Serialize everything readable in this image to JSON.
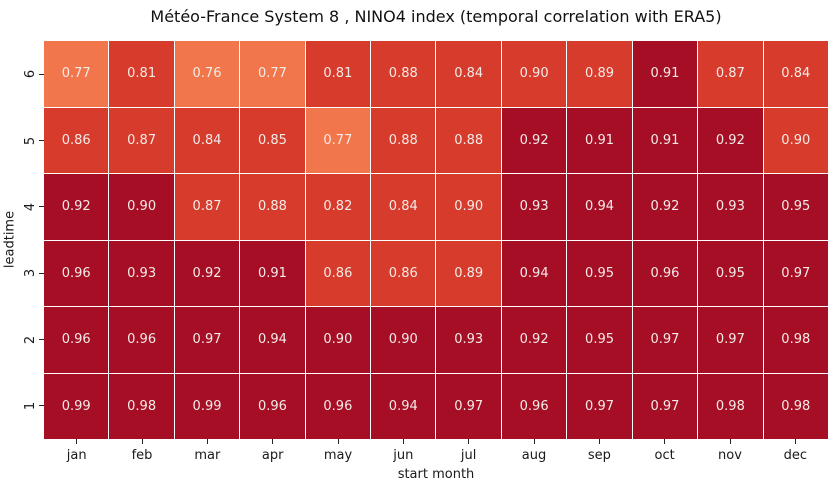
{
  "chart_data": {
    "type": "heatmap",
    "title": "Météo-France System 8 , NINO4 index (temporal correlation with ERA5)",
    "xlabel": "start month",
    "ylabel": "leadtime",
    "x_categories": [
      "jan",
      "feb",
      "mar",
      "apr",
      "may",
      "jun",
      "jul",
      "aug",
      "sep",
      "oct",
      "nov",
      "dec"
    ],
    "y_categories": [
      "6",
      "5",
      "4",
      "3",
      "2",
      "1"
    ],
    "values": [
      [
        0.77,
        0.81,
        0.76,
        0.77,
        0.81,
        0.88,
        0.84,
        0.9,
        0.89,
        0.91,
        0.87,
        0.84
      ],
      [
        0.86,
        0.87,
        0.84,
        0.85,
        0.77,
        0.88,
        0.88,
        0.92,
        0.91,
        0.91,
        0.92,
        0.9
      ],
      [
        0.92,
        0.9,
        0.87,
        0.88,
        0.82,
        0.84,
        0.9,
        0.93,
        0.94,
        0.92,
        0.93,
        0.95
      ],
      [
        0.96,
        0.93,
        0.92,
        0.91,
        0.86,
        0.86,
        0.89,
        0.94,
        0.95,
        0.96,
        0.95,
        0.97
      ],
      [
        0.96,
        0.96,
        0.97,
        0.94,
        0.9,
        0.9,
        0.93,
        0.92,
        0.95,
        0.97,
        0.97,
        0.98
      ],
      [
        0.99,
        0.98,
        0.99,
        0.96,
        0.96,
        0.94,
        0.97,
        0.96,
        0.97,
        0.97,
        0.98,
        0.98
      ]
    ],
    "cell_bands": [
      [
        "O",
        "R",
        "O",
        "O",
        "R",
        "R",
        "R",
        "R",
        "R",
        "D",
        "R",
        "R"
      ],
      [
        "R",
        "R",
        "R",
        "R",
        "O",
        "R",
        "R",
        "D",
        "D",
        "D",
        "D",
        "R"
      ],
      [
        "D",
        "D",
        "R",
        "R",
        "R",
        "R",
        "R",
        "D",
        "D",
        "D",
        "D",
        "D"
      ],
      [
        "D",
        "D",
        "D",
        "D",
        "R",
        "R",
        "R",
        "D",
        "D",
        "D",
        "D",
        "D"
      ],
      [
        "D",
        "D",
        "D",
        "D",
        "D",
        "D",
        "D",
        "D",
        "D",
        "D",
        "D",
        "D"
      ],
      [
        "D",
        "D",
        "D",
        "D",
        "D",
        "D",
        "D",
        "D",
        "D",
        "D",
        "D",
        "D"
      ]
    ],
    "palette": {
      "O": "#f1764b",
      "R": "#d73b2c",
      "D": "#a50e25"
    },
    "annotation_text_color": "#f3ebe7",
    "grid_line_color": "#ffffff",
    "value_format_decimals": 2,
    "legend": "none",
    "axis_ranges": {
      "columns": 12,
      "rows": 6
    }
  }
}
